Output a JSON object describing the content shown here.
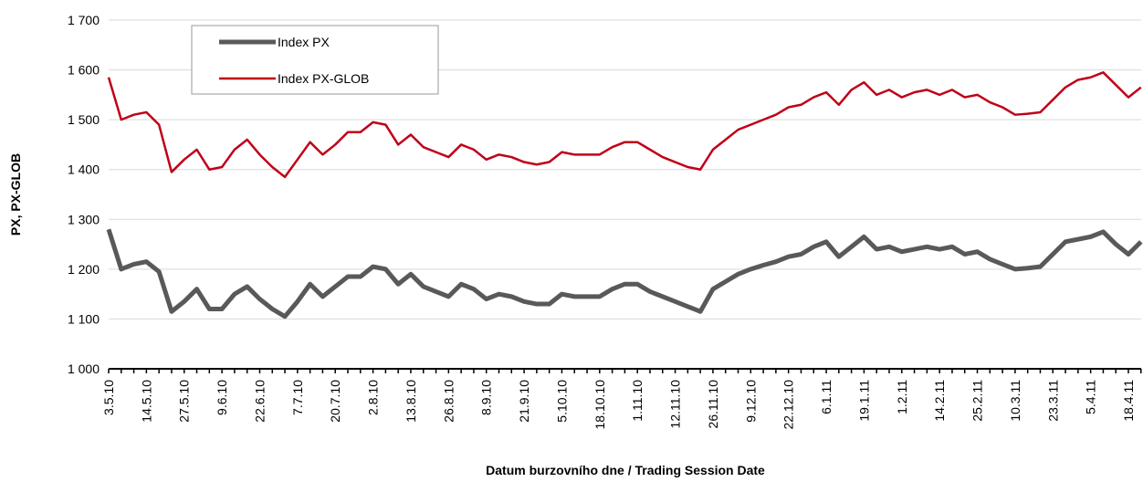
{
  "chart_data": {
    "type": "line",
    "y_label": "PX, PX-GLOB",
    "x_label": "Datum burzovního dne / Trading Session Date",
    "categories": [
      "3.5.10",
      null,
      null,
      "14.5.10",
      null,
      null,
      "27.5.10",
      null,
      null,
      "9.6.10",
      null,
      null,
      "22.6.10",
      null,
      null,
      "7.7.10",
      null,
      null,
      "20.7.10",
      null,
      null,
      "2.8.10",
      null,
      null,
      "13.8.10",
      null,
      null,
      "26.8.10",
      null,
      null,
      "8.9.10",
      null,
      null,
      "21.9.10",
      null,
      null,
      "5.10.10",
      null,
      null,
      "18.10.10",
      null,
      null,
      "1.11.10",
      null,
      null,
      "12.11.10",
      null,
      null,
      "26.11.10",
      null,
      null,
      "9.12.10",
      null,
      null,
      "22.12.10",
      null,
      null,
      "6.1.11",
      null,
      null,
      "19.1.11",
      null,
      null,
      "1.2.11",
      null,
      null,
      "14.2.11",
      null,
      null,
      "25.2.11",
      null,
      null,
      "10.3.11",
      null,
      null,
      "23.3.11",
      null,
      null,
      "5.4.11",
      null,
      null,
      "18.4.11",
      null
    ],
    "series": [
      {
        "name": "Index PX",
        "color": "#595959",
        "values": [
          1280,
          1200,
          1210,
          1215,
          1195,
          1115,
          1135,
          1160,
          1120,
          1120,
          1150,
          1165,
          1140,
          1120,
          1105,
          1135,
          1170,
          1145,
          1165,
          1185,
          1185,
          1205,
          1200,
          1170,
          1190,
          1165,
          1155,
          1145,
          1170,
          1160,
          1140,
          1150,
          1145,
          1135,
          1130,
          1130,
          1150,
          1145,
          1145,
          1145,
          1160,
          1170,
          1170,
          1155,
          1145,
          1135,
          1125,
          1115,
          1160,
          1175,
          1190,
          1200,
          1208,
          1215,
          1225,
          1230,
          1245,
          1255,
          1225,
          1245,
          1265,
          1240,
          1245,
          1235,
          1240,
          1245,
          1240,
          1245,
          1230,
          1235,
          1220,
          1210,
          1200,
          1202,
          1205,
          1230,
          1255,
          1260,
          1265,
          1275,
          1250,
          1230,
          1255
        ]
      },
      {
        "name": "Index PX-GLOB",
        "color": "#c00018",
        "values": [
          1585,
          1500,
          1510,
          1515,
          1490,
          1395,
          1420,
          1440,
          1400,
          1405,
          1440,
          1460,
          1430,
          1405,
          1385,
          1420,
          1455,
          1430,
          1450,
          1475,
          1475,
          1495,
          1490,
          1450,
          1470,
          1445,
          1435,
          1425,
          1450,
          1440,
          1420,
          1430,
          1425,
          1415,
          1410,
          1415,
          1435,
          1430,
          1430,
          1430,
          1445,
          1455,
          1455,
          1440,
          1425,
          1415,
          1405,
          1400,
          1440,
          1460,
          1480,
          1490,
          1500,
          1510,
          1525,
          1530,
          1545,
          1555,
          1530,
          1560,
          1575,
          1550,
          1560,
          1545,
          1555,
          1560,
          1550,
          1560,
          1545,
          1550,
          1535,
          1525,
          1510,
          1512,
          1515,
          1540,
          1565,
          1580,
          1585,
          1595,
          1570,
          1545,
          1565
        ]
      }
    ],
    "ylim": [
      1000,
      1700
    ],
    "yticks": [
      {
        "value": 1000,
        "label": "1 000"
      },
      {
        "value": 1100,
        "label": "1 100"
      },
      {
        "value": 1200,
        "label": "1 200"
      },
      {
        "value": 1300,
        "label": "1 300"
      },
      {
        "value": 1400,
        "label": "1 400"
      },
      {
        "value": 1500,
        "label": "1 500"
      },
      {
        "value": 1600,
        "label": "1 600"
      },
      {
        "value": 1700,
        "label": "1 700"
      }
    ],
    "grid": true
  }
}
